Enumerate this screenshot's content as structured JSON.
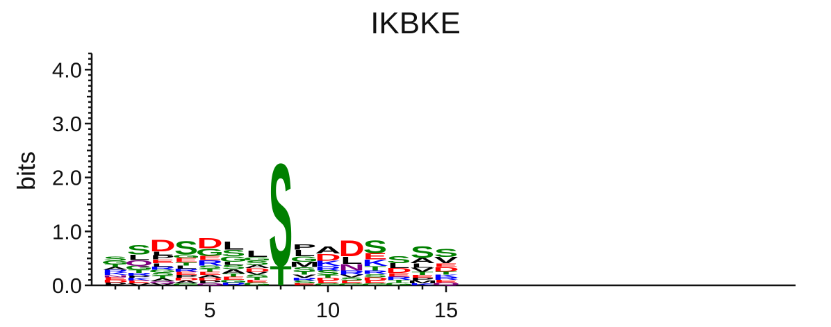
{
  "chart_data": {
    "type": "sequence-logo",
    "title": "IKBKE",
    "ylabel": "bits",
    "ylim": [
      0,
      4.3
    ],
    "yticks": [
      "0.0",
      "1.0",
      "2.0",
      "3.0",
      "4.0"
    ],
    "xtick_labels": [
      "5",
      "10",
      "15"
    ],
    "xtick_positions": [
      5,
      10,
      15
    ],
    "color_scheme": {
      "S": "#008000",
      "T": "#008000",
      "G": "#008000",
      "Y": "#008000",
      "C": "#008000",
      "D": "#ff0000",
      "E": "#ff0000",
      "K": "#0000ff",
      "R": "#0000ff",
      "H": "#0000ff",
      "N": "#800080",
      "Q": "#800080",
      "L": "#000000",
      "A": "#000000",
      "V": "#000000",
      "M": "#000000",
      "F": "#000000",
      "P": "#000000",
      "I": "#000000",
      "W": "#000000"
    },
    "positions": [
      {
        "pos": 1,
        "letters": [
          [
            "P",
            0.05
          ],
          [
            "D",
            0.05
          ],
          [
            "E",
            0.05
          ],
          [
            "N",
            0.04
          ],
          [
            "K",
            0.05
          ],
          [
            "R",
            0.05
          ],
          [
            "A",
            0.05
          ],
          [
            "T",
            0.05
          ],
          [
            "G",
            0.07
          ],
          [
            "S",
            0.08
          ]
        ]
      },
      {
        "pos": 2,
        "letters": [
          [
            "V",
            0.04
          ],
          [
            "E",
            0.05
          ],
          [
            "K",
            0.05
          ],
          [
            "P",
            0.04
          ],
          [
            "R",
            0.05
          ],
          [
            "T",
            0.06
          ],
          [
            "G",
            0.08
          ],
          [
            "Q",
            0.1
          ],
          [
            "L",
            0.1
          ],
          [
            "S",
            0.18
          ]
        ]
      },
      {
        "pos": 3,
        "letters": [
          [
            "V",
            0.04
          ],
          [
            "Q",
            0.04
          ],
          [
            "A",
            0.05
          ],
          [
            "T",
            0.05
          ],
          [
            "S",
            0.06
          ],
          [
            "G",
            0.05
          ],
          [
            "R",
            0.06
          ],
          [
            "L",
            0.06
          ],
          [
            "E",
            0.07
          ],
          [
            "P",
            0.08
          ],
          [
            "L",
            0.07
          ],
          [
            "D",
            0.22
          ]
        ]
      },
      {
        "pos": 4,
        "letters": [
          [
            "G",
            0.04
          ],
          [
            "A",
            0.05
          ],
          [
            "D",
            0.05
          ],
          [
            "P",
            0.05
          ],
          [
            "E",
            0.06
          ],
          [
            "R",
            0.06
          ],
          [
            "L",
            0.06
          ],
          [
            "T",
            0.06
          ],
          [
            "E",
            0.08
          ],
          [
            "G",
            0.06
          ],
          [
            "S",
            0.26
          ]
        ]
      },
      {
        "pos": 5,
        "letters": [
          [
            "Q",
            0.04
          ],
          [
            "P",
            0.05
          ],
          [
            "D",
            0.05
          ],
          [
            "A",
            0.05
          ],
          [
            "E",
            0.06
          ],
          [
            "T",
            0.06
          ],
          [
            "S",
            0.06
          ],
          [
            "R",
            0.1
          ],
          [
            "E",
            0.08
          ],
          [
            "G",
            0.14
          ],
          [
            "D",
            0.2
          ]
        ]
      },
      {
        "pos": 6,
        "letters": [
          [
            "R",
            0.05
          ],
          [
            "G",
            0.05
          ],
          [
            "E",
            0.06
          ],
          [
            "T",
            0.06
          ],
          [
            "A",
            0.08
          ],
          [
            "S",
            0.08
          ],
          [
            "L",
            0.06
          ],
          [
            "G",
            0.1
          ],
          [
            "S",
            0.12
          ],
          [
            "L",
            0.15
          ]
        ]
      },
      {
        "pos": 7,
        "letters": [
          [
            "G",
            0.05
          ],
          [
            "E",
            0.05
          ],
          [
            "T",
            0.05
          ],
          [
            "S",
            0.05
          ],
          [
            "V",
            0.05
          ],
          [
            "D",
            0.07
          ],
          [
            "A",
            0.06
          ],
          [
            "S",
            0.08
          ],
          [
            "G",
            0.07
          ],
          [
            "L",
            0.12
          ]
        ]
      },
      {
        "pos": 8,
        "letters": [
          [
            "T",
            0.37
          ],
          [
            "S",
            1.95
          ]
        ]
      },
      {
        "pos": 9,
        "letters": [
          [
            "E",
            0.04
          ],
          [
            "S",
            0.05
          ],
          [
            "R",
            0.05
          ],
          [
            "V",
            0.06
          ],
          [
            "T",
            0.06
          ],
          [
            "S",
            0.08
          ],
          [
            "M",
            0.1
          ],
          [
            "G",
            0.1
          ],
          [
            "L",
            0.12
          ],
          [
            "P",
            0.1
          ]
        ]
      },
      {
        "pos": 10,
        "letters": [
          [
            "G",
            0.04
          ],
          [
            "E",
            0.05
          ],
          [
            "D",
            0.05
          ],
          [
            "T",
            0.05
          ],
          [
            "S",
            0.09
          ],
          [
            "R",
            0.08
          ],
          [
            "K",
            0.1
          ],
          [
            "D",
            0.13
          ],
          [
            "A",
            0.14
          ]
        ]
      },
      {
        "pos": 11,
        "letters": [
          [
            "G",
            0.04
          ],
          [
            "E",
            0.05
          ],
          [
            "S",
            0.06
          ],
          [
            "V",
            0.05
          ],
          [
            "R",
            0.08
          ],
          [
            "N",
            0.12
          ],
          [
            "L",
            0.14
          ],
          [
            "D",
            0.3
          ]
        ]
      },
      {
        "pos": 12,
        "letters": [
          [
            "G",
            0.04
          ],
          [
            "E",
            0.05
          ],
          [
            "D",
            0.06
          ],
          [
            "S",
            0.06
          ],
          [
            "R",
            0.07
          ],
          [
            "T",
            0.08
          ],
          [
            "K",
            0.12
          ],
          [
            "E",
            0.12
          ],
          [
            "S",
            0.24
          ]
        ]
      },
      {
        "pos": 13,
        "letters": [
          [
            "G",
            0.05
          ],
          [
            "T",
            0.05
          ],
          [
            "R",
            0.06
          ],
          [
            "E",
            0.07
          ],
          [
            "D",
            0.09
          ],
          [
            "L",
            0.09
          ],
          [
            "S",
            0.14
          ]
        ]
      },
      {
        "pos": 14,
        "letters": [
          [
            "K",
            0.04
          ],
          [
            "M",
            0.05
          ],
          [
            "P",
            0.05
          ],
          [
            "E",
            0.05
          ],
          [
            "T",
            0.06
          ],
          [
            "V",
            0.08
          ],
          [
            "L",
            0.08
          ],
          [
            "A",
            0.1
          ],
          [
            "S",
            0.22
          ]
        ]
      },
      {
        "pos": 15,
        "letters": [
          [
            "Q",
            0.05
          ],
          [
            "E",
            0.05
          ],
          [
            "R",
            0.05
          ],
          [
            "K",
            0.05
          ],
          [
            "T",
            0.06
          ],
          [
            "D",
            0.08
          ],
          [
            "E",
            0.07
          ],
          [
            "V",
            0.12
          ],
          [
            "S",
            0.15
          ]
        ]
      }
    ]
  }
}
